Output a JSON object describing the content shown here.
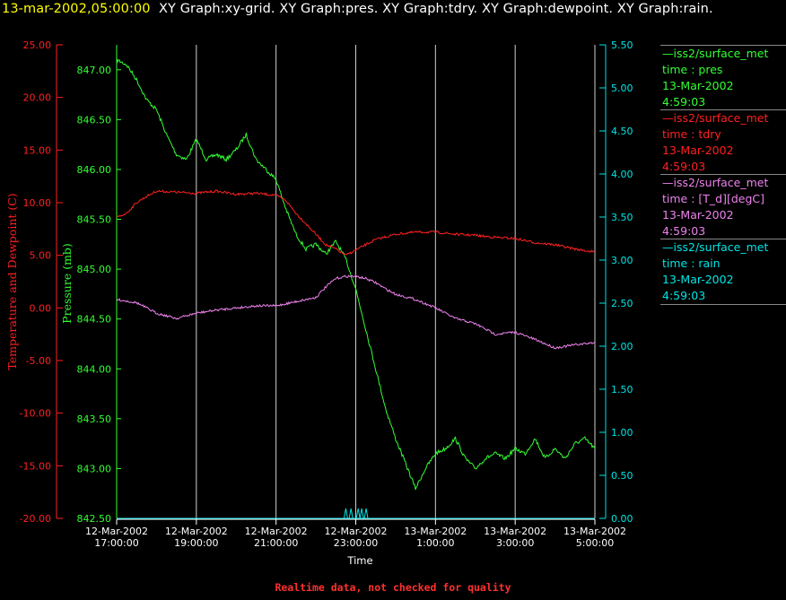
{
  "header": {
    "timestamp": "13-mar-2002,05:00:00",
    "graphs": "XY Graph:xy-grid.  XY Graph:pres.  XY Graph:tdry.  XY Graph:dewpoint.  XY Graph:rain."
  },
  "colors": {
    "pres": "#33ff33",
    "tdry": "#ff2020",
    "dewpoint": "#ee82ee",
    "rain": "#00e5e5",
    "grid": "#ffffff"
  },
  "legend": [
    {
      "line1": "—iss2/surface_met",
      "line2": "time : pres",
      "line3": "13-Mar-2002",
      "line4": "4:59:03",
      "color": "#33ff33"
    },
    {
      "line1": "—iss2/surface_met",
      "line2": "time : tdry",
      "line3": "13-Mar-2002",
      "line4": "4:59:03",
      "color": "#ff2020"
    },
    {
      "line1": "—iss2/surface_met",
      "line2": "time : [T_d][degC]",
      "line3": "13-Mar-2002",
      "line4": "4:59:03",
      "color": "#ee82ee"
    },
    {
      "line1": "—iss2/surface_met",
      "line2": "time : rain",
      "line3": "13-Mar-2002",
      "line4": "4:59:03",
      "color": "#00e5e5"
    }
  ],
  "footer": "Realtime data, not checked for quality",
  "chart_data": {
    "type": "line",
    "xlabel": "Time",
    "x_range_hours": [
      17,
      29
    ],
    "x_ticks": [
      {
        "h": 17,
        "d": "12-Mar-2002",
        "t": "17:00:00"
      },
      {
        "h": 19,
        "d": "12-Mar-2002",
        "t": "19:00:00"
      },
      {
        "h": 21,
        "d": "12-Mar-2002",
        "t": "21:00:00"
      },
      {
        "h": 23,
        "d": "12-Mar-2002",
        "t": "23:00:00"
      },
      {
        "h": 25,
        "d": "13-Mar-2002",
        "t": "1:00:00"
      },
      {
        "h": 27,
        "d": "13-Mar-2002",
        "t": "3:00:00"
      },
      {
        "h": 29,
        "d": "13-Mar-2002",
        "t": "5:00:00"
      }
    ],
    "axes": {
      "temp": {
        "label": "Temperature and Dewpoint (C)",
        "range": [
          -20,
          25
        ],
        "ticks": [
          "25.00",
          "20.00",
          "15.00",
          "10.00",
          "5.00",
          "0.00",
          "-5.00",
          "-10.00",
          "-15.00",
          "-20.00"
        ]
      },
      "pres": {
        "label": "Pressure (mb)",
        "range": [
          842.5,
          847.25
        ],
        "ticks": [
          "847.00",
          "846.50",
          "846.00",
          "845.50",
          "845.00",
          "844.50",
          "844.00",
          "843.50",
          "843.00",
          "842.50"
        ]
      },
      "rain": {
        "range": [
          0,
          5.5
        ],
        "ticks": [
          "5.50",
          "5.00",
          "4.50",
          "4.00",
          "3.50",
          "3.00",
          "2.50",
          "2.00",
          "1.50",
          "1.00",
          "0.50",
          "0.00"
        ]
      }
    },
    "series": [
      {
        "name": "pres",
        "axis": "pres",
        "points": [
          [
            17.0,
            847.1
          ],
          [
            17.25,
            847.05
          ],
          [
            17.5,
            846.9
          ],
          [
            17.75,
            846.7
          ],
          [
            18.0,
            846.6
          ],
          [
            18.25,
            846.35
          ],
          [
            18.5,
            846.15
          ],
          [
            18.75,
            846.1
          ],
          [
            19.0,
            846.3
          ],
          [
            19.25,
            846.1
          ],
          [
            19.5,
            846.15
          ],
          [
            19.75,
            846.1
          ],
          [
            20.0,
            846.2
          ],
          [
            20.25,
            846.35
          ],
          [
            20.5,
            846.1
          ],
          [
            20.75,
            846.0
          ],
          [
            21.0,
            845.9
          ],
          [
            21.25,
            845.6
          ],
          [
            21.5,
            845.35
          ],
          [
            21.75,
            845.2
          ],
          [
            22.0,
            845.25
          ],
          [
            22.25,
            845.15
          ],
          [
            22.5,
            845.28
          ],
          [
            22.75,
            845.1
          ],
          [
            23.0,
            844.8
          ],
          [
            23.25,
            844.4
          ],
          [
            23.5,
            844.0
          ],
          [
            23.75,
            843.6
          ],
          [
            24.0,
            843.3
          ],
          [
            24.25,
            843.05
          ],
          [
            24.5,
            842.8
          ],
          [
            24.75,
            843.0
          ],
          [
            25.0,
            843.15
          ],
          [
            25.25,
            843.2
          ],
          [
            25.5,
            843.3
          ],
          [
            25.75,
            843.1
          ],
          [
            26.0,
            843.0
          ],
          [
            26.25,
            843.1
          ],
          [
            26.5,
            843.15
          ],
          [
            26.75,
            843.1
          ],
          [
            27.0,
            843.2
          ],
          [
            27.25,
            843.15
          ],
          [
            27.5,
            843.3
          ],
          [
            27.75,
            843.1
          ],
          [
            28.0,
            843.2
          ],
          [
            28.25,
            843.1
          ],
          [
            28.5,
            843.25
          ],
          [
            28.75,
            843.3
          ],
          [
            29.0,
            843.2
          ]
        ]
      },
      {
        "name": "tdry",
        "axis": "temp",
        "points": [
          [
            17.0,
            8.6
          ],
          [
            17.25,
            9.0
          ],
          [
            17.5,
            10.0
          ],
          [
            17.75,
            10.6
          ],
          [
            18.0,
            11.1
          ],
          [
            18.5,
            11.0
          ],
          [
            19.0,
            10.9
          ],
          [
            19.5,
            11.1
          ],
          [
            20.0,
            10.8
          ],
          [
            20.5,
            10.9
          ],
          [
            21.0,
            10.7
          ],
          [
            21.25,
            10.2
          ],
          [
            21.5,
            9.0
          ],
          [
            21.75,
            8.0
          ],
          [
            22.0,
            7.0
          ],
          [
            22.25,
            6.0
          ],
          [
            22.5,
            5.6
          ],
          [
            22.75,
            5.0
          ],
          [
            23.0,
            5.5
          ],
          [
            23.5,
            6.5
          ],
          [
            24.0,
            7.0
          ],
          [
            24.5,
            7.2
          ],
          [
            25.0,
            7.2
          ],
          [
            25.5,
            7.0
          ],
          [
            26.0,
            6.9
          ],
          [
            26.5,
            6.7
          ],
          [
            27.0,
            6.6
          ],
          [
            27.5,
            6.2
          ],
          [
            28.0,
            6.0
          ],
          [
            28.5,
            5.6
          ],
          [
            29.0,
            5.3
          ]
        ]
      },
      {
        "name": "[T_d][degC]",
        "axis": "temp",
        "points": [
          [
            17.0,
            0.8
          ],
          [
            17.5,
            0.5
          ],
          [
            18.0,
            -0.5
          ],
          [
            18.5,
            -1.0
          ],
          [
            19.0,
            -0.5
          ],
          [
            19.5,
            -0.2
          ],
          [
            20.0,
            0.0
          ],
          [
            20.5,
            0.2
          ],
          [
            21.0,
            0.2
          ],
          [
            21.5,
            0.6
          ],
          [
            22.0,
            1.0
          ],
          [
            22.25,
            2.0
          ],
          [
            22.5,
            2.8
          ],
          [
            22.75,
            3.0
          ],
          [
            23.0,
            3.0
          ],
          [
            23.25,
            2.8
          ],
          [
            23.5,
            2.4
          ],
          [
            23.75,
            1.8
          ],
          [
            24.0,
            1.3
          ],
          [
            24.5,
            0.8
          ],
          [
            25.0,
            0.0
          ],
          [
            25.5,
            -1.0
          ],
          [
            26.0,
            -1.5
          ],
          [
            26.5,
            -2.5
          ],
          [
            27.0,
            -2.3
          ],
          [
            27.5,
            -3.0
          ],
          [
            28.0,
            -3.8
          ],
          [
            28.5,
            -3.5
          ],
          [
            29.0,
            -3.3
          ]
        ]
      },
      {
        "name": "rain",
        "axis": "rain",
        "points": [
          [
            17.0,
            0.0
          ],
          [
            22.9,
            0.0
          ],
          [
            23.0,
            0.0
          ],
          [
            29.0,
            0.0
          ]
        ]
      }
    ],
    "grid": true,
    "legend_position": "right"
  }
}
